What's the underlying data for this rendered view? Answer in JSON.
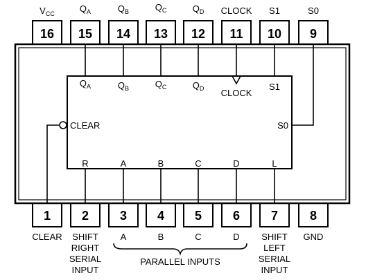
{
  "top_pins": [
    {
      "number": "16",
      "label": "V",
      "sub": "CC"
    },
    {
      "number": "15",
      "label": "Q",
      "sub": "A"
    },
    {
      "number": "14",
      "label": "Q",
      "sub": "B"
    },
    {
      "number": "13",
      "label": "Q",
      "sub": "C"
    },
    {
      "number": "12",
      "label": "Q",
      "sub": "D"
    },
    {
      "number": "11",
      "label": "CLOCK",
      "sub": ""
    },
    {
      "number": "10",
      "label": "S1",
      "sub": ""
    },
    {
      "number": "9",
      "label": "S0",
      "sub": ""
    }
  ],
  "bottom_pins": [
    {
      "number": "1",
      "lines": [
        "CLEAR"
      ]
    },
    {
      "number": "2",
      "lines": [
        "SHIFT",
        "RIGHT",
        "SERIAL",
        "INPUT"
      ]
    },
    {
      "number": "3",
      "lines": [
        "A"
      ]
    },
    {
      "number": "4",
      "lines": [
        "B"
      ]
    },
    {
      "number": "5",
      "lines": [
        "C"
      ]
    },
    {
      "number": "6",
      "lines": [
        "D"
      ]
    },
    {
      "number": "7",
      "lines": [
        "SHIFT",
        "LEFT",
        "SERIAL",
        "INPUT"
      ]
    },
    {
      "number": "8",
      "lines": [
        "GND"
      ]
    }
  ],
  "parallel_inputs_label": "PARALLEL INPUTS",
  "block": {
    "top_labels": [
      {
        "label": "Q",
        "sub": "A"
      },
      {
        "label": "Q",
        "sub": "B"
      },
      {
        "label": "Q",
        "sub": "C"
      },
      {
        "label": "Q",
        "sub": "D"
      },
      {
        "label": "CLOCK",
        "sub": ""
      },
      {
        "label": "S1",
        "sub": ""
      }
    ],
    "clear_label": "CLEAR",
    "s0_label": "S0",
    "bottom_labels": [
      "R",
      "A",
      "B",
      "C",
      "D",
      "L"
    ]
  }
}
